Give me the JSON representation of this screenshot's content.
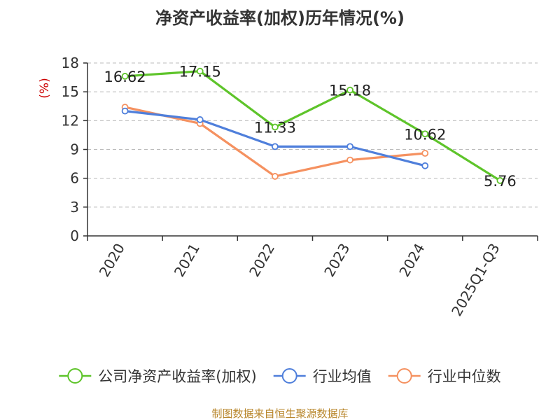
{
  "chart_data": {
    "type": "line",
    "title": "净资产收益率(加权)历年情况(%)",
    "ylabel": "(%)",
    "xlabel": "",
    "categories": [
      "2020",
      "2021",
      "2022",
      "2023",
      "2024",
      "2025Q1-Q3"
    ],
    "ylim": [
      0,
      18
    ],
    "yticks": [
      0,
      3,
      6,
      9,
      12,
      15,
      18
    ],
    "grid": true,
    "legend_position": "bottom",
    "series": [
      {
        "name": "公司净资产收益率(加权)",
        "color": "#5ec42a",
        "values": [
          16.62,
          17.15,
          11.33,
          15.18,
          10.62,
          5.76
        ],
        "labels": [
          "16.62",
          "17.15",
          "11.33",
          "15.18",
          "10.62",
          "5.76"
        ]
      },
      {
        "name": "行业均值",
        "color": "#4f7fdb",
        "values": [
          13.0,
          12.1,
          9.3,
          9.3,
          7.3,
          null
        ]
      },
      {
        "name": "行业中位数",
        "color": "#f59160",
        "values": [
          13.4,
          11.7,
          6.2,
          7.9,
          8.6,
          null
        ]
      }
    ]
  },
  "footer": {
    "source": "制图数据来自恒生聚源数据库"
  }
}
